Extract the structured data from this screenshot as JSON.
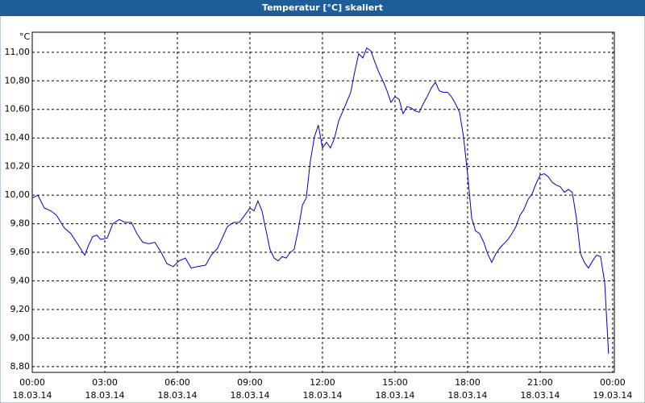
{
  "window_title": "Temperatur [°C] skaliert",
  "chart_data": {
    "type": "line",
    "y_unit": "°C",
    "color": "#0000c8",
    "grid": true,
    "xlim": [
      0,
      24.07
    ],
    "ylim": [
      8.76,
      11.14
    ],
    "xticks": [
      {
        "value": 0,
        "label": "00:00",
        "date": "18.03.14"
      },
      {
        "value": 3,
        "label": "03:00",
        "date": "18.03.14"
      },
      {
        "value": 6,
        "label": "06:00",
        "date": "18.03.14"
      },
      {
        "value": 9,
        "label": "09:00",
        "date": "18.03.14"
      },
      {
        "value": 12,
        "label": "12:00",
        "date": "18.03.14"
      },
      {
        "value": 15,
        "label": "15:00",
        "date": "18.03.14"
      },
      {
        "value": 18,
        "label": "18:00",
        "date": "18.03.14"
      },
      {
        "value": 21,
        "label": "21:00",
        "date": "18.03.14"
      },
      {
        "value": 24,
        "label": "00:00",
        "date": "19.03.14"
      }
    ],
    "yticks": [
      {
        "value": 8.8,
        "label": "8,80"
      },
      {
        "value": 9.0,
        "label": "9,00"
      },
      {
        "value": 9.2,
        "label": "9,20"
      },
      {
        "value": 9.4,
        "label": "9,40"
      },
      {
        "value": 9.6,
        "label": "9,60"
      },
      {
        "value": 9.8,
        "label": "9,80"
      },
      {
        "value": 10.0,
        "label": "10,00"
      },
      {
        "value": 10.2,
        "label": "10,20"
      },
      {
        "value": 10.4,
        "label": "10,40"
      },
      {
        "value": 10.6,
        "label": "10,60"
      },
      {
        "value": 10.8,
        "label": "10,80"
      },
      {
        "value": 11.0,
        "label": "11,00"
      }
    ],
    "x": [
      0,
      0.23,
      0.5,
      0.77,
      1,
      1.33,
      1.6,
      1.83,
      2.17,
      2.33,
      2.5,
      2.67,
      2.83,
      3.1,
      3.33,
      3.6,
      3.83,
      4.1,
      4.33,
      4.57,
      4.83,
      5.07,
      5.33,
      5.57,
      5.83,
      6.07,
      6.33,
      6.57,
      6.83,
      7.17,
      7.4,
      7.67,
      7.83,
      8.07,
      8.33,
      8.57,
      8.83,
      9,
      9.17,
      9.33,
      9.5,
      9.67,
      9.83,
      10,
      10.17,
      10.33,
      10.5,
      10.67,
      10.83,
      11,
      11.17,
      11.33,
      11.5,
      11.67,
      11.83,
      12,
      12.17,
      12.33,
      12.5,
      12.67,
      12.9,
      13.17,
      13.33,
      13.5,
      13.67,
      13.83,
      14,
      14.17,
      14.33,
      14.5,
      14.67,
      14.83,
      15,
      15.17,
      15.33,
      15.5,
      15.67,
      15.83,
      16,
      16.17,
      16.33,
      16.5,
      16.67,
      16.83,
      17,
      17.17,
      17.33,
      17.5,
      17.67,
      17.83,
      18,
      18.17,
      18.33,
      18.5,
      18.67,
      18.83,
      19,
      19.17,
      19.33,
      19.5,
      19.67,
      19.83,
      20,
      20.17,
      20.33,
      20.5,
      20.67,
      20.83,
      21,
      21.17,
      21.33,
      21.5,
      21.67,
      21.83,
      22,
      22.17,
      22.33,
      22.5,
      22.67,
      22.83,
      23,
      23.17,
      23.33,
      23.5,
      23.67,
      23.83
    ],
    "values": [
      9.98,
      10.0,
      9.91,
      9.89,
      9.86,
      9.77,
      9.73,
      9.67,
      9.58,
      9.65,
      9.71,
      9.72,
      9.69,
      9.7,
      9.8,
      9.83,
      9.81,
      9.81,
      9.73,
      9.67,
      9.66,
      9.67,
      9.6,
      9.52,
      9.5,
      9.54,
      9.56,
      9.49,
      9.5,
      9.51,
      9.58,
      9.63,
      9.69,
      9.78,
      9.81,
      9.81,
      9.87,
      9.91,
      9.89,
      9.96,
      9.89,
      9.75,
      9.62,
      9.56,
      9.54,
      9.57,
      9.56,
      9.6,
      9.62,
      9.76,
      9.93,
      9.98,
      10.24,
      10.41,
      10.49,
      10.33,
      10.37,
      10.33,
      10.4,
      10.52,
      10.61,
      10.72,
      10.86,
      10.99,
      10.96,
      11.03,
      11.01,
      10.93,
      10.86,
      10.8,
      10.73,
      10.65,
      10.69,
      10.67,
      10.57,
      10.62,
      10.61,
      10.59,
      10.58,
      10.64,
      10.69,
      10.75,
      10.79,
      10.73,
      10.72,
      10.72,
      10.69,
      10.64,
      10.58,
      10.41,
      10.15,
      9.84,
      9.75,
      9.73,
      9.67,
      9.59,
      9.53,
      9.59,
      9.63,
      9.66,
      9.69,
      9.73,
      9.78,
      9.86,
      9.9,
      9.97,
      10.01,
      10.08,
      10.14,
      10.15,
      10.13,
      10.09,
      10.07,
      10.06,
      10.02,
      10.04,
      10.02,
      9.84,
      9.59,
      9.53,
      9.49,
      9.54,
      9.58,
      9.57,
      9.39,
      8.89
    ]
  }
}
